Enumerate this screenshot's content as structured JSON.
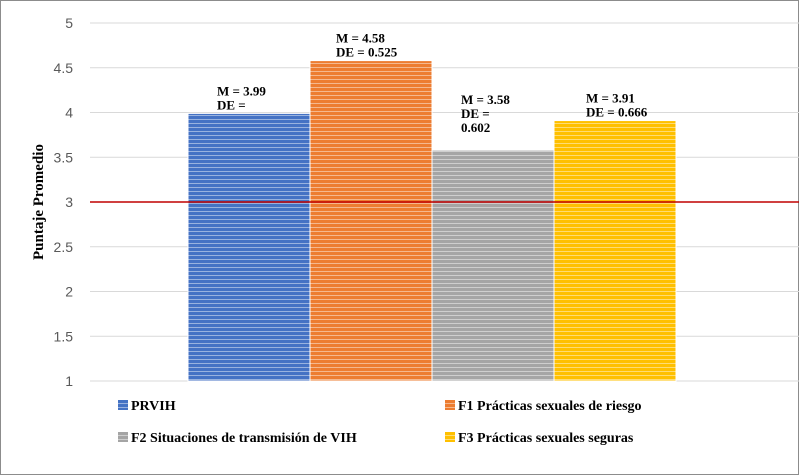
{
  "chart_data": {
    "type": "bar",
    "title": "",
    "xlabel": "",
    "ylabel": "Puntaje Promedio",
    "ylim": [
      1,
      5
    ],
    "yticks": [
      "1",
      "1.5",
      "2",
      "2.5",
      "3",
      "3.5",
      "4",
      "4.5",
      "5"
    ],
    "grid": true,
    "reference_line": {
      "value": 3,
      "color": "#c00000"
    },
    "legend_position": "bottom",
    "series": [
      {
        "name": "PRVIH",
        "value": 3.99,
        "color": "#4472c4",
        "label_lines": [
          "M = 3.99",
          "DE ="
        ]
      },
      {
        "name": "F1 Prácticas sexuales de riesgo",
        "value": 4.58,
        "color": "#ed7d31",
        "label_lines": [
          "M = 4.58",
          "DE = 0.525"
        ]
      },
      {
        "name": "F2 Situaciones de transmisión de VIH",
        "value": 3.58,
        "color": "#a5a5a5",
        "label_lines": [
          "M = 3.58",
          "DE =",
          "0.602"
        ]
      },
      {
        "name": "F3 Prácticas sexuales seguras",
        "value": 3.91,
        "color": "#ffc000",
        "label_lines": [
          "M = 3.91",
          "DE = 0.666"
        ]
      }
    ]
  }
}
